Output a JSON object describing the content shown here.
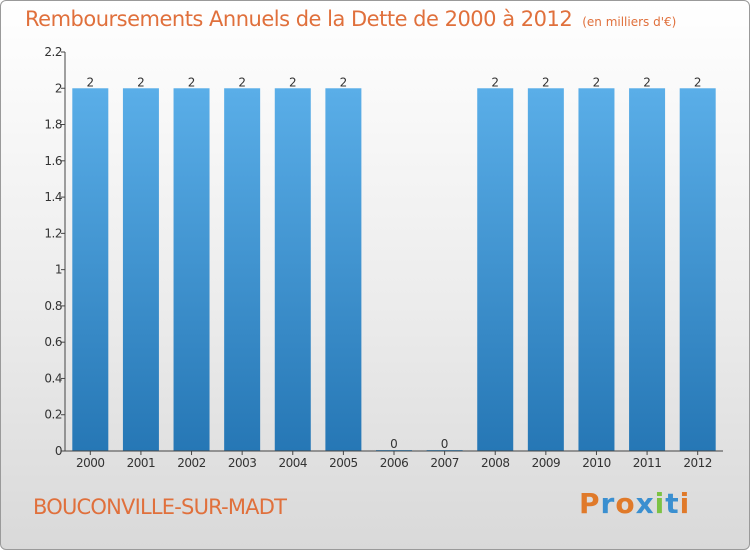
{
  "header": {
    "title": "Remboursements Annuels de la Dette de 2000 à 2012",
    "unit": "(en milliers d'€)"
  },
  "footer": {
    "commune": "BOUCONVILLE-SUR-MADT",
    "logo": "Proxiti"
  },
  "colors": {
    "title": "#e0703c",
    "bar_top": "#5aaee8",
    "bar_bottom": "#2677b5",
    "logo_letters": [
      "#e07a2a",
      "#3a8fd0",
      "#e07a2a",
      "#3a8fd0",
      "#7cc243",
      "#3a8fd0",
      "#e07a2a"
    ]
  },
  "chart_data": {
    "type": "bar",
    "title": "Remboursements Annuels de la Dette de 2000 à 2012",
    "categories": [
      "2000",
      "2001",
      "2002",
      "2003",
      "2004",
      "2005",
      "2006",
      "2007",
      "2008",
      "2009",
      "2010",
      "2011",
      "2012"
    ],
    "values": [
      2,
      2,
      2,
      2,
      2,
      2,
      0,
      0,
      2,
      2,
      2,
      2,
      2
    ],
    "data_labels": [
      "2",
      "2",
      "2",
      "2",
      "2",
      "2",
      "0",
      "0",
      "2",
      "2",
      "2",
      "2",
      "2"
    ],
    "ylim": [
      0,
      2.2
    ],
    "yticks": [
      0,
      0.2,
      0.4,
      0.6,
      0.8,
      1,
      1.2,
      1.4,
      1.6,
      1.8,
      2,
      2.2
    ],
    "ytick_labels": [
      "0",
      "0.2",
      "0.4",
      "0.6",
      "0.8",
      "1",
      "1.2",
      "1.4",
      "1.6",
      "1.8",
      "2",
      "2.2"
    ],
    "xlabel": "",
    "ylabel": "",
    "grid": false,
    "legend": false
  }
}
